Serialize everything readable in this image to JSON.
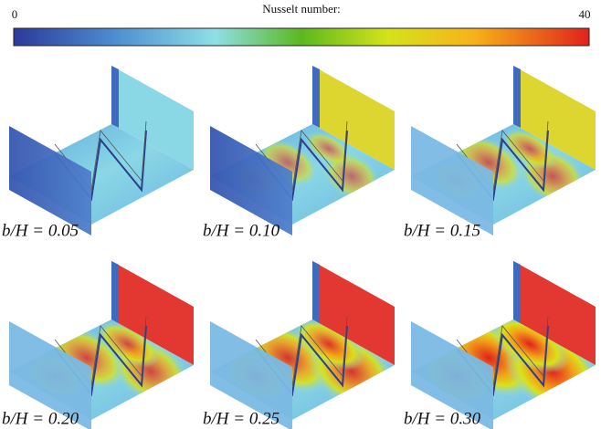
{
  "colorbar": {
    "title": "Nusselt number:",
    "min": 0,
    "max": 40
  },
  "panels": [
    {
      "label": "b/H = 0.05"
    },
    {
      "label": "b/H = 0.10"
    },
    {
      "label": "b/H = 0.15"
    },
    {
      "label": "b/H = 0.20"
    },
    {
      "label": "b/H = 0.25"
    },
    {
      "label": "b/H = 0.30"
    }
  ]
}
